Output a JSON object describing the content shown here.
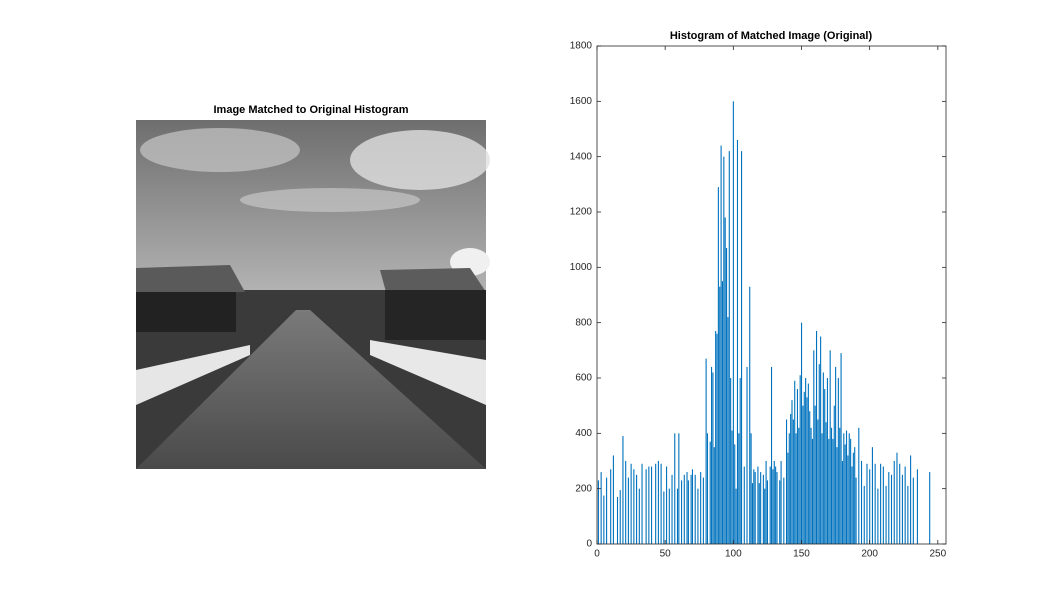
{
  "image": {
    "title": "Image Matched to Original Histogram"
  },
  "chart_data": {
    "type": "bar",
    "title": "Histogram of Matched Image (Original)",
    "color": "#0072bd",
    "x": [
      1,
      3,
      5,
      7,
      10,
      12,
      15,
      17,
      19,
      21,
      23,
      25,
      27,
      29,
      31,
      33,
      36,
      38,
      40,
      43,
      45,
      47,
      49,
      51,
      53,
      55,
      57,
      59,
      60,
      62,
      64,
      66,
      67,
      69,
      70,
      72,
      74,
      76,
      78,
      80,
      81,
      83,
      84,
      85,
      86,
      87,
      88,
      89,
      90,
      91,
      92,
      93,
      94,
      95,
      96,
      97,
      98,
      99,
      100,
      101,
      102,
      103,
      104,
      105,
      106,
      108,
      110,
      112,
      113,
      114,
      115,
      116,
      118,
      119,
      120,
      122,
      123,
      124,
      125,
      127,
      128,
      129,
      130,
      131,
      132,
      134,
      135,
      137,
      139,
      140,
      141,
      142,
      143,
      144,
      145,
      146,
      147,
      148,
      149,
      150,
      151,
      152,
      153,
      154,
      155,
      156,
      157,
      158,
      159,
      160,
      161,
      162,
      163,
      164,
      165,
      166,
      167,
      168,
      169,
      170,
      171,
      172,
      173,
      174,
      175,
      176,
      177,
      178,
      179,
      180,
      181,
      182,
      183,
      184,
      185,
      186,
      187,
      188,
      189,
      190,
      192,
      194,
      196,
      198,
      200,
      202,
      204,
      206,
      208,
      210,
      212,
      214,
      216,
      218,
      220,
      222,
      224,
      226,
      228,
      230,
      232,
      235,
      244
    ],
    "values": [
      230,
      260,
      175,
      240,
      270,
      320,
      170,
      195,
      390,
      300,
      240,
      290,
      270,
      250,
      200,
      290,
      270,
      280,
      280,
      290,
      300,
      290,
      190,
      280,
      200,
      250,
      400,
      200,
      400,
      230,
      250,
      260,
      230,
      250,
      270,
      250,
      200,
      260,
      240,
      670,
      400,
      370,
      640,
      620,
      350,
      770,
      760,
      1290,
      930,
      1440,
      950,
      1400,
      1180,
      1070,
      820,
      1420,
      600,
      410,
      1600,
      360,
      200,
      1460,
      400,
      600,
      1420,
      280,
      640,
      930,
      400,
      220,
      270,
      260,
      280,
      220,
      260,
      250,
      200,
      300,
      230,
      280,
      640,
      270,
      300,
      280,
      260,
      230,
      300,
      240,
      450,
      330,
      400,
      470,
      520,
      450,
      590,
      400,
      560,
      420,
      610,
      800,
      500,
      550,
      600,
      530,
      580,
      480,
      420,
      380,
      700,
      500,
      770,
      450,
      650,
      750,
      400,
      620,
      560,
      440,
      600,
      380,
      700,
      420,
      380,
      500,
      640,
      350,
      600,
      420,
      690,
      300,
      400,
      360,
      410,
      320,
      400,
      380,
      280,
      330,
      350,
      240,
      420,
      300,
      210,
      290,
      270,
      350,
      290,
      200,
      290,
      280,
      210,
      260,
      250,
      300,
      330,
      290,
      250,
      280,
      210,
      320,
      240,
      270,
      260
    ],
    "xlim": [
      0,
      256
    ],
    "ylim": [
      0,
      1800
    ],
    "xticks": [
      0,
      50,
      100,
      150,
      200,
      250
    ],
    "yticks": [
      0,
      200,
      400,
      600,
      800,
      1000,
      1200,
      1400,
      1600,
      1800
    ]
  }
}
